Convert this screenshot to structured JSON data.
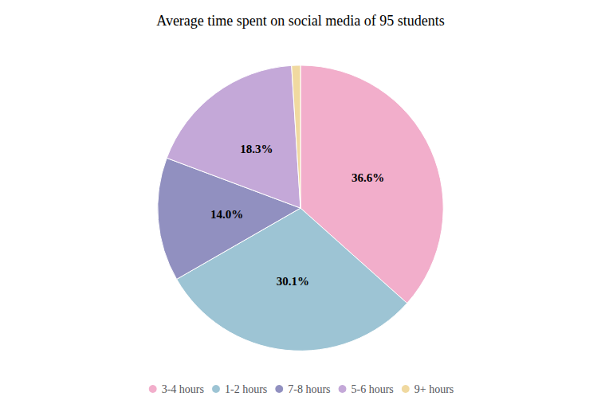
{
  "chart_data": {
    "type": "pie",
    "title": "Average time spent on social media of 95 students",
    "categories": [
      "3-4 hours",
      "1-2 hours",
      "7-8 hours",
      "5-6 hours",
      "9+ hours"
    ],
    "values": [
      36.6,
      30.1,
      14.0,
      18.3,
      1.0
    ],
    "value_labels": [
      "36.6%",
      "30.1%",
      "14.0%",
      "18.3%",
      null
    ],
    "colors": [
      "#F2AECB",
      "#9DC4D4",
      "#9190C0",
      "#C4A8D8",
      "#F0D9A0"
    ],
    "data_labels": true,
    "legend": "bottom"
  }
}
